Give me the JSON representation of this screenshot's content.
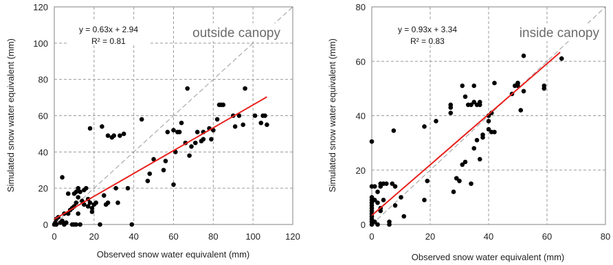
{
  "chart_data": [
    {
      "type": "scatter",
      "title": "",
      "annotation": "outside canopy",
      "equation": "y = 0.63x + 2.94",
      "r2": "R² = 0.81",
      "xlabel": "Observed snow water equivalent (mm)",
      "ylabel": "Simulated snow water equivalent (mm)",
      "xlim": [
        0,
        120
      ],
      "ylim": [
        0,
        120
      ],
      "xticks": [
        "0",
        "20",
        "40",
        "60",
        "80",
        "100",
        "120"
      ],
      "yticks": [
        "0",
        "20",
        "40",
        "60",
        "80",
        "100",
        "120"
      ],
      "grid": "dashed",
      "fit": {
        "slope": 0.63,
        "intercept": 2.94,
        "x_range": [
          0,
          107
        ]
      },
      "one_to_one": true,
      "colors": {
        "points": "#000000",
        "fit": "#e8201c",
        "one_to_one": "#9a9a9a"
      },
      "points": [
        [
          0,
          0
        ],
        [
          0.5,
          1
        ],
        [
          1,
          3
        ],
        [
          1,
          0
        ],
        [
          2,
          4
        ],
        [
          3,
          1
        ],
        [
          4,
          26
        ],
        [
          4,
          2
        ],
        [
          5,
          0
        ],
        [
          5,
          6
        ],
        [
          6,
          1
        ],
        [
          7,
          6
        ],
        [
          7,
          17
        ],
        [
          8,
          8
        ],
        [
          9,
          9
        ],
        [
          9,
          0
        ],
        [
          10,
          17
        ],
        [
          10,
          0
        ],
        [
          10,
          10
        ],
        [
          11,
          18
        ],
        [
          11,
          0
        ],
        [
          11,
          12
        ],
        [
          12,
          20
        ],
        [
          12,
          15
        ],
        [
          12,
          6
        ],
        [
          13,
          0
        ],
        [
          13,
          18
        ],
        [
          14,
          13
        ],
        [
          15,
          11
        ],
        [
          15,
          19
        ],
        [
          16,
          20
        ],
        [
          17,
          14
        ],
        [
          17,
          10
        ],
        [
          18,
          53
        ],
        [
          18,
          12
        ],
        [
          19,
          7
        ],
        [
          19,
          9
        ],
        [
          20,
          11
        ],
        [
          21,
          12
        ],
        [
          23,
          0
        ],
        [
          24,
          54
        ],
        [
          25,
          16
        ],
        [
          26,
          11
        ],
        [
          27,
          12
        ],
        [
          27,
          49
        ],
        [
          29,
          48
        ],
        [
          30,
          49
        ],
        [
          31,
          20
        ],
        [
          32,
          12
        ],
        [
          33,
          49
        ],
        [
          35,
          50
        ],
        [
          37,
          20
        ],
        [
          39,
          0
        ],
        [
          44,
          58
        ],
        [
          47,
          24
        ],
        [
          48,
          28
        ],
        [
          50,
          36
        ],
        [
          55,
          30
        ],
        [
          56,
          35
        ],
        [
          57,
          51
        ],
        [
          60,
          22
        ],
        [
          60,
          52
        ],
        [
          61,
          40
        ],
        [
          62,
          51
        ],
        [
          63,
          51
        ],
        [
          64,
          56
        ],
        [
          66,
          45
        ],
        [
          67,
          75
        ],
        [
          68,
          38
        ],
        [
          69,
          43
        ],
        [
          71,
          45
        ],
        [
          72,
          51
        ],
        [
          74,
          46
        ],
        [
          75,
          51
        ],
        [
          75,
          47
        ],
        [
          78,
          53
        ],
        [
          79,
          47
        ],
        [
          80,
          52
        ],
        [
          82,
          58
        ],
        [
          83,
          66
        ],
        [
          84,
          66
        ],
        [
          85,
          66
        ],
        [
          90,
          60
        ],
        [
          91,
          54
        ],
        [
          93,
          60
        ],
        [
          95,
          55
        ],
        [
          96,
          75
        ],
        [
          101,
          60
        ],
        [
          104,
          56
        ],
        [
          105,
          60
        ],
        [
          106,
          60
        ],
        [
          107,
          55
        ]
      ]
    },
    {
      "type": "scatter",
      "title": "",
      "annotation": "inside canopy",
      "equation": "y = 0.93x + 3.34",
      "r2": "R² = 0.83",
      "xlabel": "Observed snow water equivalent (mm)",
      "ylabel": "Simulated snow water equivalent (mm)",
      "xlim": [
        0,
        80
      ],
      "ylim": [
        0,
        80
      ],
      "xticks": [
        "0",
        "20",
        "40",
        "60",
        "80"
      ],
      "yticks": [
        "0",
        "20",
        "40",
        "60",
        "80"
      ],
      "grid": "dashed",
      "fit": {
        "slope": 0.93,
        "intercept": 3.34,
        "x_range": [
          0,
          64.5
        ]
      },
      "one_to_one": true,
      "colors": {
        "points": "#000000",
        "fit": "#e8201c",
        "one_to_one": "#9a9a9a"
      },
      "points": [
        [
          0,
          0
        ],
        [
          0,
          1
        ],
        [
          0,
          2
        ],
        [
          0,
          3
        ],
        [
          0,
          4
        ],
        [
          0,
          5
        ],
        [
          0,
          6
        ],
        [
          0,
          7
        ],
        [
          0,
          8
        ],
        [
          0,
          9
        ],
        [
          0,
          10
        ],
        [
          0,
          14
        ],
        [
          0,
          30.5
        ],
        [
          1,
          1
        ],
        [
          1,
          9
        ],
        [
          1,
          14
        ],
        [
          2,
          0
        ],
        [
          2,
          8
        ],
        [
          2,
          12
        ],
        [
          3,
          5
        ],
        [
          3,
          6
        ],
        [
          3,
          14
        ],
        [
          3,
          15
        ],
        [
          4,
          15
        ],
        [
          4,
          9
        ],
        [
          5,
          15
        ],
        [
          6,
          1
        ],
        [
          6,
          0
        ],
        [
          7,
          15
        ],
        [
          7.5,
          34.5
        ],
        [
          8,
          7
        ],
        [
          8,
          14
        ],
        [
          10,
          10
        ],
        [
          11,
          3
        ],
        [
          18,
          36
        ],
        [
          18,
          9
        ],
        [
          19,
          16
        ],
        [
          22,
          38
        ],
        [
          27,
          43
        ],
        [
          27,
          44
        ],
        [
          27,
          41
        ],
        [
          28,
          12
        ],
        [
          29,
          17
        ],
        [
          30,
          16
        ],
        [
          31,
          22
        ],
        [
          31,
          51
        ],
        [
          32,
          47
        ],
        [
          32,
          23
        ],
        [
          33,
          44
        ],
        [
          34,
          15
        ],
        [
          34,
          44
        ],
        [
          35,
          45
        ],
        [
          35,
          51
        ],
        [
          35,
          28
        ],
        [
          36,
          31
        ],
        [
          36,
          44
        ],
        [
          37,
          24
        ],
        [
          37,
          44
        ],
        [
          37,
          45
        ],
        [
          38,
          33
        ],
        [
          38,
          32
        ],
        [
          40,
          40
        ],
        [
          40,
          35
        ],
        [
          40,
          38
        ],
        [
          41,
          41
        ],
        [
          41,
          34
        ],
        [
          42,
          34
        ],
        [
          42,
          52
        ],
        [
          48,
          48
        ],
        [
          49,
          51
        ],
        [
          50,
          51
        ],
        [
          50,
          52
        ],
        [
          50,
          52
        ],
        [
          51,
          42
        ],
        [
          52,
          49
        ],
        [
          52,
          62
        ],
        [
          59,
          50
        ],
        [
          59,
          51
        ],
        [
          65,
          61
        ]
      ]
    }
  ]
}
